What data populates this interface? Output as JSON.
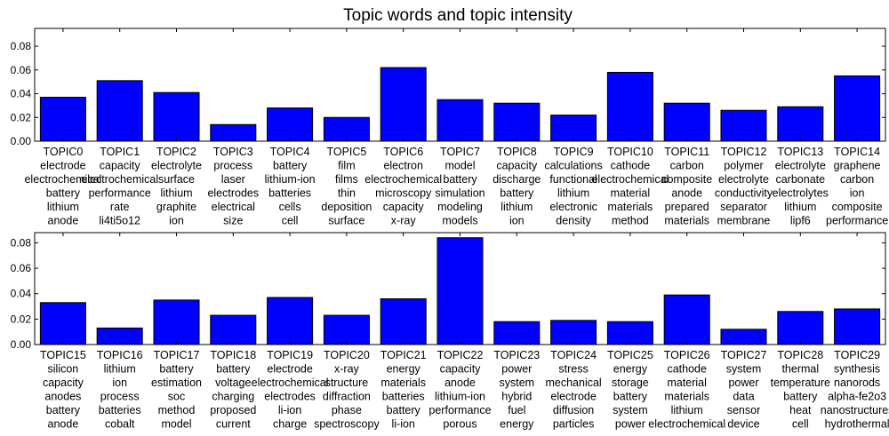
{
  "chart_data": [
    {
      "type": "bar",
      "title": "Topic words and topic intensity",
      "xlabel": "",
      "ylabel": "",
      "ylim": [
        0,
        0.095
      ],
      "yticks": [
        "0.00",
        "0.02",
        "0.04",
        "0.06",
        "0.08"
      ],
      "ytick_values": [
        0,
        0.02,
        0.04,
        0.06,
        0.08
      ],
      "bar_color": "#0000ff",
      "grid": false,
      "categories": [
        "TOPIC0",
        "TOPIC1",
        "TOPIC2",
        "TOPIC3",
        "TOPIC4",
        "TOPIC5",
        "TOPIC6",
        "TOPIC7",
        "TOPIC8",
        "TOPIC9",
        "TOPIC10",
        "TOPIC11",
        "TOPIC12",
        "TOPIC13",
        "TOPIC14"
      ],
      "values": [
        0.037,
        0.051,
        0.041,
        0.014,
        0.028,
        0.02,
        0.062,
        0.035,
        0.032,
        0.022,
        0.058,
        0.032,
        0.026,
        0.029,
        0.055
      ],
      "words": [
        [
          "electrode",
          "electrochemical",
          "battery",
          "lithium",
          "anode"
        ],
        [
          "capacity",
          "electrochemical",
          "performance",
          "rate",
          "li4ti5o12"
        ],
        [
          "electrolyte",
          "surface",
          "lithium",
          "graphite",
          "ion"
        ],
        [
          "process",
          "laser",
          "electrodes",
          "electrical",
          "size"
        ],
        [
          "battery",
          "lithium-ion",
          "batteries",
          "cells",
          "cell"
        ],
        [
          "film",
          "films",
          "thin",
          "deposition",
          "surface"
        ],
        [
          "electron",
          "electrochemical",
          "microscopy",
          "capacity",
          "x-ray"
        ],
        [
          "model",
          "battery",
          "simulation",
          "modeling",
          "models"
        ],
        [
          "capacity",
          "discharge",
          "battery",
          "lithium",
          "ion"
        ],
        [
          "calculations",
          "functional",
          "lithium",
          "electronic",
          "density"
        ],
        [
          "cathode",
          "electrochemical",
          "material",
          "materials",
          "method"
        ],
        [
          "carbon",
          "composite",
          "anode",
          "prepared",
          "materials"
        ],
        [
          "polymer",
          "electrolyte",
          "conductivity",
          "separator",
          "membrane"
        ],
        [
          "electrolyte",
          "carbonate",
          "electrolytes",
          "lithium",
          "lipf6"
        ],
        [
          "graphene",
          "carbon",
          "ion",
          "composite",
          "performance"
        ]
      ]
    },
    {
      "type": "bar",
      "title": "",
      "xlabel": "",
      "ylabel": "",
      "ylim": [
        0,
        0.088
      ],
      "yticks": [
        "0.00",
        "0.02",
        "0.04",
        "0.06",
        "0.08"
      ],
      "ytick_values": [
        0,
        0.02,
        0.04,
        0.06,
        0.08
      ],
      "bar_color": "#0000ff",
      "grid": false,
      "categories": [
        "TOPIC15",
        "TOPIC16",
        "TOPIC17",
        "TOPIC18",
        "TOPIC19",
        "TOPIC20",
        "TOPIC21",
        "TOPIC22",
        "TOPIC23",
        "TOPIC24",
        "TOPIC25",
        "TOPIC26",
        "TOPIC27",
        "TOPIC28",
        "TOPIC29"
      ],
      "values": [
        0.033,
        0.013,
        0.035,
        0.023,
        0.037,
        0.023,
        0.036,
        0.084,
        0.018,
        0.019,
        0.018,
        0.039,
        0.012,
        0.026,
        0.028
      ],
      "words": [
        [
          "silicon",
          "capacity",
          "anodes",
          "battery",
          "anode"
        ],
        [
          "lithium",
          "ion",
          "process",
          "batteries",
          "cobalt"
        ],
        [
          "battery",
          "estimation",
          "soc",
          "method",
          "model"
        ],
        [
          "battery",
          "voltage",
          "charging",
          "proposed",
          "current"
        ],
        [
          "electrode",
          "electrochemical",
          "electrodes",
          "li-ion",
          "charge"
        ],
        [
          "x-ray",
          "structure",
          "diffraction",
          "phase",
          "spectroscopy"
        ],
        [
          "energy",
          "materials",
          "batteries",
          "battery",
          "li-ion"
        ],
        [
          "capacity",
          "anode",
          "lithium-ion",
          "performance",
          "porous"
        ],
        [
          "power",
          "system",
          "hybrid",
          "fuel",
          "energy"
        ],
        [
          "stress",
          "mechanical",
          "electrode",
          "diffusion",
          "particles"
        ],
        [
          "energy",
          "storage",
          "battery",
          "system",
          "power"
        ],
        [
          "cathode",
          "material",
          "materials",
          "lithium",
          "electrochemical"
        ],
        [
          "system",
          "power",
          "data",
          "sensor",
          "device"
        ],
        [
          "thermal",
          "temperature",
          "battery",
          "heat",
          "cell"
        ],
        [
          "synthesis",
          "nanorods",
          "alpha-fe2o3",
          "nanostructures",
          "hydrothermal"
        ]
      ]
    }
  ]
}
